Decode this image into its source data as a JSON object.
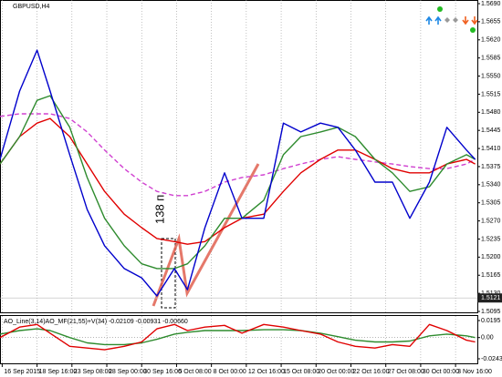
{
  "chart_data": [
    {
      "type": "line",
      "title": "GBPUSD,H4",
      "x": [
        -1,
        8,
        16,
        22,
        31,
        39,
        47,
        56,
        64,
        71,
        79,
        85,
        93,
        102,
        110,
        120,
        129,
        137,
        146,
        154,
        162,
        171,
        179,
        187,
        196,
        204,
        213,
        217
      ],
      "series": [
        {
          "color": "#d040d0",
          "style": "dashed",
          "values": [
            1.5472,
            1.5477,
            1.5477,
            1.5477,
            1.5468,
            1.5442,
            1.5407,
            1.5371,
            1.5345,
            1.5327,
            1.5319,
            1.5319,
            1.5327,
            1.5345,
            1.5354,
            1.5359,
            1.5371,
            1.538,
            1.5389,
            1.5394,
            1.5389,
            1.5384,
            1.538,
            1.5375,
            1.5371,
            1.5371,
            1.538,
            1.5389
          ]
        },
        {
          "color": "#e00000",
          "style": "solid",
          "values": [
            1.538,
            1.5433,
            1.5459,
            1.5468,
            1.5433,
            1.538,
            1.5327,
            1.5283,
            1.5257,
            1.5236,
            1.523,
            1.5225,
            1.523,
            1.5257,
            1.5275,
            1.5283,
            1.5327,
            1.5363,
            1.5389,
            1.5407,
            1.5407,
            1.5389,
            1.5371,
            1.5363,
            1.5363,
            1.538,
            1.5389,
            1.538
          ]
        },
        {
          "color": "#2e8b2e",
          "style": "solid",
          "values": [
            1.538,
            1.5433,
            1.5503,
            1.5512,
            1.5451,
            1.5354,
            1.5275,
            1.5222,
            1.5187,
            1.5178,
            1.5178,
            1.5187,
            1.5222,
            1.5275,
            1.5275,
            1.531,
            1.5398,
            1.5433,
            1.5442,
            1.5451,
            1.5433,
            1.5389,
            1.5363,
            1.5327,
            1.5336,
            1.538,
            1.5398,
            1.5389
          ]
        },
        {
          "color": "#0000cc",
          "style": "solid",
          "values": [
            1.5389,
            1.5521,
            1.56,
            1.5521,
            1.5398,
            1.5292,
            1.5222,
            1.5178,
            1.516,
            1.5125,
            1.5178,
            1.5137,
            1.5257,
            1.5363,
            1.5275,
            1.5275,
            1.5459,
            1.5442,
            1.5459,
            1.5451,
            1.5407,
            1.5345,
            1.5345,
            1.5275,
            1.5345,
            1.5451,
            1.5407,
            1.5389
          ]
        }
      ],
      "xlim": [
        -1,
        218
      ],
      "xticks": [
        {
          "value": 0,
          "label": "16 Sep 2015"
        },
        {
          "value": 16,
          "label": "18 Sep 16:00"
        },
        {
          "value": 32,
          "label": "23 Sep 08:00"
        },
        {
          "value": 48,
          "label": "28 Sep 00:00"
        },
        {
          "value": 64,
          "label": "30 Sep 16:00"
        },
        {
          "value": 80,
          "label": "5 Oct 08:00"
        },
        {
          "value": 96,
          "label": "8 Oct 00:00"
        },
        {
          "value": 112,
          "label": "12 Oct 16:00"
        },
        {
          "value": 128,
          "label": "15 Oct 08:00"
        },
        {
          "value": 144,
          "label": "20 Oct 00:00"
        },
        {
          "value": 160,
          "label": "22 Oct 16:00"
        },
        {
          "value": 176,
          "label": "27 Oct 08:00"
        },
        {
          "value": 192,
          "label": "30 Oct 00:00"
        },
        {
          "value": 208,
          "label": "3 Nov 16:00"
        }
      ],
      "ylim": [
        1.5095,
        1.569
      ],
      "yticks": [
        {
          "value": 1.569,
          "label": "1.5690"
        },
        1.5655,
        {
          "value": 1.562,
          "label": "1.5620"
        },
        1.5585,
        {
          "value": 1.555,
          "label": "1.5550"
        },
        1.5515,
        {
          "value": 1.548,
          "label": "1.5480"
        },
        1.5445,
        {
          "value": 1.541,
          "label": "1.5410"
        },
        1.5375,
        {
          "value": 1.534,
          "label": "1.5340"
        },
        1.5305,
        {
          "value": 1.527,
          "label": "1.5270"
        },
        1.5235,
        {
          "value": 1.52,
          "label": "1.5200"
        },
        1.5165,
        {
          "value": 1.513,
          "label": "1.5130"
        },
        1.5095
      ],
      "last_price": 1.5121,
      "annotation": "138 п.",
      "grid": true
    },
    {
      "type": "line",
      "title": "AO_Line(3,14)AO_MF(21,55)+V(34) -0.02109 -0.00931 -0.00660",
      "x": [
        -1,
        8,
        16,
        22,
        31,
        39,
        47,
        56,
        64,
        71,
        79,
        85,
        93,
        102,
        110,
        120,
        129,
        137,
        146,
        154,
        162,
        171,
        179,
        187,
        196,
        204,
        213,
        217
      ],
      "series": [
        {
          "color": "#2e8b2e",
          "style": "solid",
          "values": [
            0.004,
            0.008,
            0.01,
            0.008,
            0,
            -0.006,
            -0.008,
            -0.008,
            -0.006,
            -0.002,
            0.004,
            0.006,
            0.008,
            0.008,
            0.008,
            0.009,
            0.009,
            0.008,
            0.005,
            0.001,
            -0.003,
            -0.005,
            -0.005,
            -0.004,
            0.002,
            0.004,
            0.002,
            0
          ]
        },
        {
          "color": "#e00000",
          "style": "solid",
          "values": [
            0,
            0.012,
            0.015,
            0.005,
            -0.01,
            -0.012,
            -0.014,
            -0.01,
            -0.005,
            0.01,
            0.015,
            0.008,
            0.012,
            0.014,
            0.005,
            0.015,
            0.012,
            0.008,
            0.004,
            -0.005,
            -0.01,
            -0.012,
            -0.008,
            -0.01,
            0.015,
            0.008,
            -0.003,
            -0.005
          ]
        }
      ],
      "xlim": [
        -1,
        218
      ],
      "ylim": [
        -0.0243,
        0.0195
      ],
      "yticks": [
        0.0195,
        {
          "value": 0,
          "label": "0.00"
        },
        -0.0243
      ],
      "grid": true
    }
  ]
}
